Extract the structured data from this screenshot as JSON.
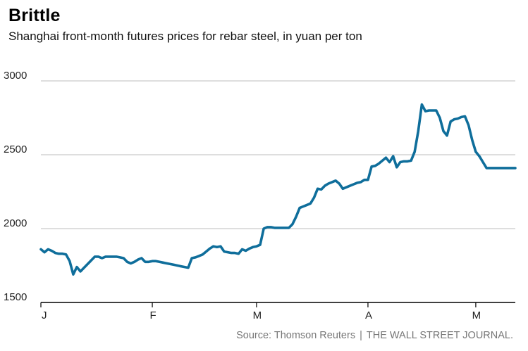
{
  "header": {
    "title": "Brittle",
    "subtitle": "Shanghai front-month futures prices for rebar steel, in yuan per ton"
  },
  "footer": {
    "source": "Source: Thomson Reuters",
    "separator": "|",
    "publisher": "THE WALL STREET JOURNAL."
  },
  "colors": {
    "line": "#0f6e9b",
    "grid": "#bdbdbd",
    "axis": "#000000"
  },
  "chart_data": {
    "type": "line",
    "title": "Brittle",
    "subtitle": "Shanghai front-month futures prices for rebar steel, in yuan per ton",
    "xlabel": "",
    "ylabel": "",
    "ylim": [
      1500,
      3000
    ],
    "xlim": [
      0,
      132
    ],
    "yticks": [
      1500,
      2000,
      2500,
      3000
    ],
    "xticks": [
      {
        "label": "J",
        "x": 0
      },
      {
        "label": "F",
        "x": 31
      },
      {
        "label": "M",
        "x": 60
      },
      {
        "label": "A",
        "x": 91
      },
      {
        "label": "M",
        "x": 121
      }
    ],
    "grid": true,
    "series": [
      {
        "x": [
          0,
          1,
          2,
          3,
          4,
          5,
          6,
          7,
          8,
          9,
          10,
          11,
          12,
          13,
          14,
          15,
          16,
          17,
          18,
          19,
          20,
          21,
          22,
          23,
          24,
          25,
          26,
          27,
          28,
          29,
          30,
          31,
          32,
          33,
          34,
          35,
          36,
          37,
          38,
          39,
          40,
          41,
          42,
          43,
          44,
          45,
          46,
          47,
          48,
          49,
          50,
          51,
          52,
          53,
          54,
          55,
          56,
          57,
          58,
          59,
          60,
          61,
          62,
          63,
          64,
          65,
          66,
          67,
          68,
          69,
          70,
          71,
          72,
          73,
          74,
          75,
          76,
          77,
          78,
          79,
          80,
          81,
          82,
          83,
          84,
          85,
          86,
          87,
          88,
          89,
          90,
          91,
          92,
          93,
          94,
          95,
          96,
          97,
          98,
          99,
          100,
          101,
          102,
          103,
          104,
          105,
          106,
          107,
          108,
          109,
          110,
          111,
          112,
          113,
          114,
          115,
          116,
          117,
          118,
          119,
          120,
          121,
          122,
          123,
          124,
          125,
          126,
          127,
          128,
          129,
          130,
          131,
          132
        ],
        "values": [
          1860,
          1840,
          1860,
          1850,
          1835,
          1830,
          1830,
          1825,
          1780,
          1690,
          1740,
          1710,
          1735,
          1760,
          1785,
          1810,
          1810,
          1800,
          1810,
          1810,
          1810,
          1810,
          1805,
          1800,
          1775,
          1765,
          1775,
          1790,
          1800,
          1775,
          1775,
          1780,
          1780,
          1775,
          1770,
          1765,
          1760,
          1755,
          1750,
          1745,
          1740,
          1735,
          1800,
          1805,
          1815,
          1825,
          1845,
          1865,
          1880,
          1875,
          1880,
          1845,
          1840,
          1835,
          1835,
          1830,
          1860,
          1850,
          1865,
          1875,
          1880,
          1890,
          2000,
          2010,
          2010,
          2005,
          2005,
          2005,
          2005,
          2005,
          2030,
          2080,
          2140,
          2150,
          2160,
          2170,
          2210,
          2270,
          2265,
          2290,
          2305,
          2315,
          2325,
          2305,
          2270,
          2280,
          2290,
          2300,
          2310,
          2315,
          2330,
          2330,
          2420,
          2425,
          2440,
          2460,
          2480,
          2450,
          2490,
          2415,
          2450,
          2455,
          2455,
          2460,
          2520,
          2660,
          2840,
          2795,
          2800,
          2800,
          2800,
          2750,
          2660,
          2630,
          2725,
          2740,
          2745,
          2755,
          2760,
          2700,
          2600,
          2520,
          2490,
          2450,
          2410,
          2410,
          2410,
          2410,
          2410,
          2410,
          2410,
          2410,
          2410
        ]
      }
    ]
  }
}
